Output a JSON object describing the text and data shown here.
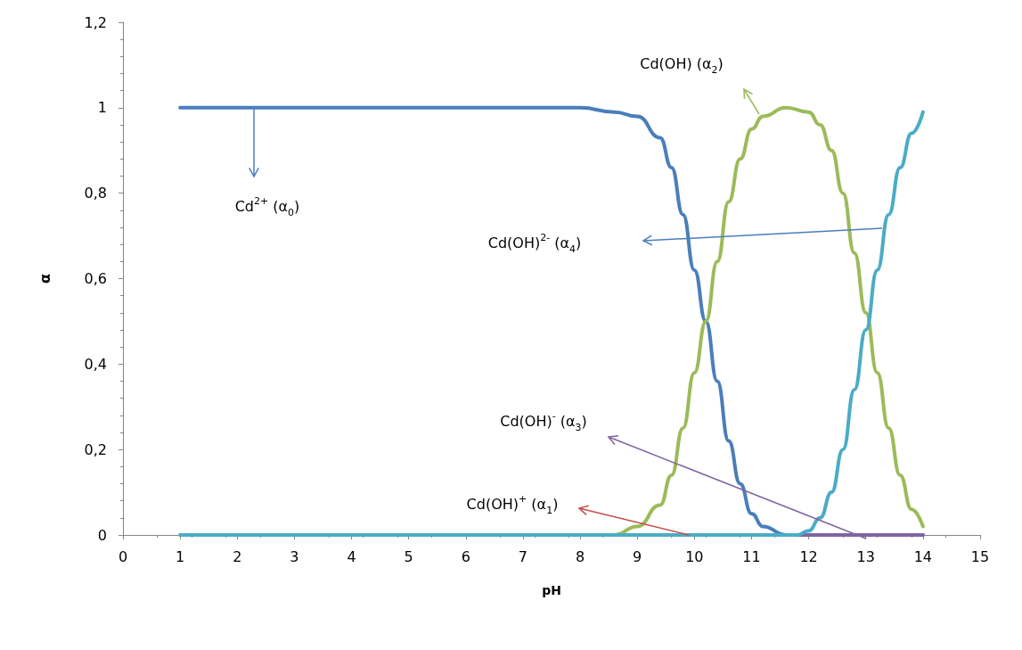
{
  "chart_data": {
    "type": "line",
    "xlabel": "pH",
    "ylabel": "α",
    "xlim": [
      0,
      15
    ],
    "xticks": [
      0,
      1,
      2,
      3,
      4,
      5,
      6,
      7,
      8,
      9,
      10,
      11,
      12,
      13,
      14,
      15
    ],
    "ylim": [
      0,
      1.2
    ],
    "yticks": [
      0,
      {
        "value": 0.2,
        "label": "0,2"
      },
      {
        "value": 0.4,
        "label": "0,4"
      },
      {
        "value": 0.6,
        "label": "0,6"
      },
      {
        "value": 0.8,
        "label": "0,8"
      },
      1,
      {
        "value": 1.2,
        "label": "1,2"
      }
    ],
    "grid": false,
    "marker": "none",
    "line_style": "solid",
    "series": [
      {
        "color": "#4a7ebb",
        "x": [
          1,
          8,
          8.6,
          9,
          9.4,
          9.6,
          9.8,
          10,
          10.2,
          10.4,
          10.6,
          10.8,
          11,
          11.2,
          11.6,
          12,
          13,
          14
        ],
        "values": [
          1,
          1,
          0.99,
          0.98,
          0.93,
          0.86,
          0.75,
          0.62,
          0.5,
          0.36,
          0.22,
          0.12,
          0.05,
          0.02,
          0,
          0,
          0,
          0
        ]
      },
      {
        "color": "#9bbb59",
        "x": [
          1,
          8.6,
          9,
          9.4,
          9.6,
          9.8,
          10,
          10.2,
          10.4,
          10.6,
          10.8,
          11,
          11.2,
          11.6,
          12,
          12.2,
          12.4,
          12.6,
          12.8,
          13,
          13.2,
          13.4,
          13.6,
          13.8,
          14
        ],
        "values": [
          0,
          0,
          0.02,
          0.07,
          0.14,
          0.25,
          0.38,
          0.5,
          0.64,
          0.78,
          0.88,
          0.95,
          0.98,
          1,
          0.99,
          0.96,
          0.9,
          0.8,
          0.66,
          0.52,
          0.38,
          0.25,
          0.14,
          0.06,
          0.02
        ]
      },
      {
        "color": "#8064a2",
        "x": [
          11.8,
          14
        ],
        "values": [
          0,
          0
        ]
      },
      {
        "color": "#4bacc6",
        "x": [
          1,
          11.8,
          12,
          12.2,
          12.4,
          12.6,
          12.8,
          13,
          13.2,
          13.4,
          13.6,
          13.8,
          14
        ],
        "values": [
          0,
          0,
          0.01,
          0.04,
          0.1,
          0.2,
          0.34,
          0.48,
          0.62,
          0.75,
          0.86,
          0.94,
          0.99
        ]
      }
    ],
    "annotations": [
      "Cd$^{2+}$ (α$_{0}$)",
      "Cd(OH)$^{+}$ (α$_{1}$)",
      "Cd(OH) (α$_{2}$)",
      "Cd(OH)$^{-}$ (α$_{3}$)",
      "Cd(OH)$^{2-}$ (α$_{4}$)"
    ]
  }
}
